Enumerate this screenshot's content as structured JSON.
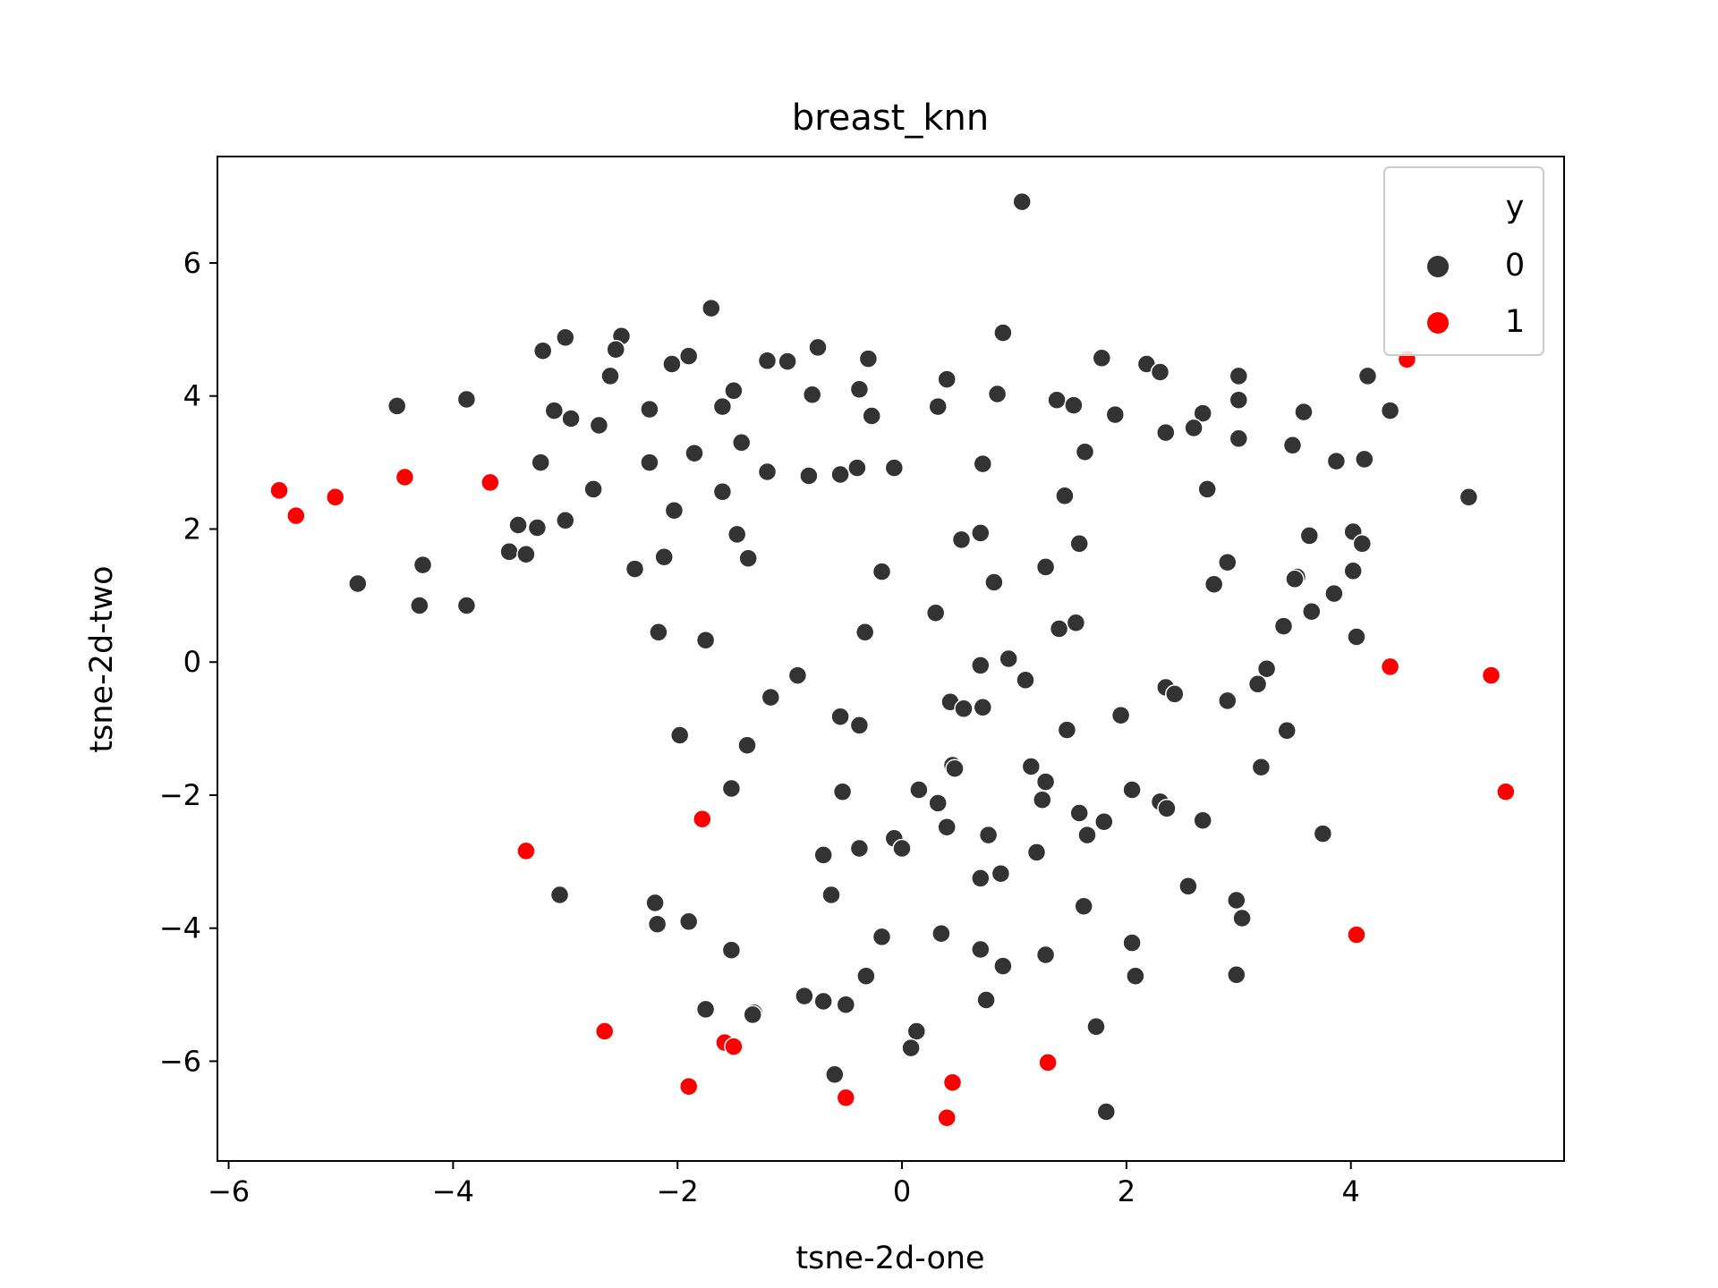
{
  "chart_data": {
    "type": "scatter",
    "title": "breast_knn",
    "xlabel": "tsne-2d-one",
    "ylabel": "tsne-2d-two",
    "xlim": [
      -6.1,
      5.9
    ],
    "ylim": [
      -7.5,
      7.6
    ],
    "x_ticks": [
      -6,
      -4,
      -2,
      0,
      2,
      4
    ],
    "x_tick_labels": [
      "−6",
      "−4",
      "−2",
      "0",
      "2",
      "4"
    ],
    "y_ticks": [
      -6,
      -4,
      -2,
      0,
      2,
      4,
      6
    ],
    "y_tick_labels": [
      "−6",
      "−4",
      "−2",
      "0",
      "2",
      "4",
      "6"
    ],
    "grid": false,
    "legend": {
      "title": "y",
      "placement": "top-right"
    },
    "series": [
      {
        "name": "0",
        "color": "#333333",
        "points": [
          [
            1.07,
            6.92
          ],
          [
            -1.7,
            5.32
          ],
          [
            0.9,
            4.95
          ],
          [
            -2.5,
            4.9
          ],
          [
            -3.0,
            4.88
          ],
          [
            -2.55,
            4.7
          ],
          [
            -3.2,
            4.68
          ],
          [
            -1.9,
            4.6
          ],
          [
            -2.05,
            4.48
          ],
          [
            -1.2,
            4.53
          ],
          [
            -1.02,
            4.52
          ],
          [
            -0.75,
            4.73
          ],
          [
            -0.3,
            4.56
          ],
          [
            1.78,
            4.57
          ],
          [
            2.18,
            4.48
          ],
          [
            2.3,
            4.36
          ],
          [
            3.0,
            4.3
          ],
          [
            4.15,
            4.3
          ],
          [
            0.4,
            4.25
          ],
          [
            -2.6,
            4.3
          ],
          [
            -1.5,
            4.08
          ],
          [
            -0.38,
            4.1
          ],
          [
            -4.5,
            3.85
          ],
          [
            -3.88,
            3.95
          ],
          [
            -0.8,
            4.02
          ],
          [
            0.85,
            4.03
          ],
          [
            1.38,
            3.94
          ],
          [
            1.53,
            3.86
          ],
          [
            3.0,
            3.94
          ],
          [
            -3.1,
            3.78
          ],
          [
            -2.95,
            3.66
          ],
          [
            -2.25,
            3.8
          ],
          [
            -1.6,
            3.84
          ],
          [
            -2.7,
            3.56
          ],
          [
            0.32,
            3.84
          ],
          [
            -0.27,
            3.7
          ],
          [
            1.9,
            3.72
          ],
          [
            2.68,
            3.74
          ],
          [
            3.58,
            3.76
          ],
          [
            4.35,
            3.78
          ],
          [
            2.35,
            3.45
          ],
          [
            2.6,
            3.52
          ],
          [
            3.0,
            3.36
          ],
          [
            3.48,
            3.26
          ],
          [
            -1.43,
            3.3
          ],
          [
            -1.85,
            3.14
          ],
          [
            1.63,
            3.16
          ],
          [
            -3.22,
            3.0
          ],
          [
            -2.25,
            3.0
          ],
          [
            -0.4,
            2.92
          ],
          [
            -0.07,
            2.92
          ],
          [
            0.72,
            2.98
          ],
          [
            3.87,
            3.02
          ],
          [
            4.12,
            3.05
          ],
          [
            -1.2,
            2.86
          ],
          [
            -0.83,
            2.8
          ],
          [
            -0.55,
            2.82
          ],
          [
            -2.75,
            2.6
          ],
          [
            -1.6,
            2.56
          ],
          [
            1.45,
            2.5
          ],
          [
            2.72,
            2.6
          ],
          [
            5.05,
            2.48
          ],
          [
            -2.03,
            2.28
          ],
          [
            -3.42,
            2.06
          ],
          [
            -3.25,
            2.02
          ],
          [
            -3.0,
            2.13
          ],
          [
            -1.47,
            1.92
          ],
          [
            0.7,
            1.94
          ],
          [
            4.02,
            1.96
          ],
          [
            -3.5,
            1.66
          ],
          [
            -3.35,
            1.62
          ],
          [
            -1.37,
            1.56
          ],
          [
            -2.12,
            1.58
          ],
          [
            0.53,
            1.84
          ],
          [
            1.58,
            1.78
          ],
          [
            3.63,
            1.9
          ],
          [
            4.1,
            1.78
          ],
          [
            -4.85,
            1.18
          ],
          [
            -4.27,
            1.46
          ],
          [
            -2.38,
            1.4
          ],
          [
            -0.18,
            1.36
          ],
          [
            0.82,
            1.2
          ],
          [
            1.28,
            1.43
          ],
          [
            2.9,
            1.5
          ],
          [
            2.78,
            1.17
          ],
          [
            3.52,
            1.28
          ],
          [
            3.5,
            1.25
          ],
          [
            4.02,
            1.37
          ],
          [
            -4.3,
            0.85
          ],
          [
            -3.88,
            0.85
          ],
          [
            0.3,
            0.74
          ],
          [
            3.85,
            1.03
          ],
          [
            3.65,
            0.76
          ],
          [
            -2.17,
            0.45
          ],
          [
            -1.75,
            0.33
          ],
          [
            -0.33,
            0.45
          ],
          [
            1.4,
            0.5
          ],
          [
            1.55,
            0.59
          ],
          [
            3.4,
            0.54
          ],
          [
            4.05,
            0.38
          ],
          [
            0.95,
            0.05
          ],
          [
            0.7,
            -0.05
          ],
          [
            3.25,
            -0.1
          ],
          [
            -0.93,
            -0.2
          ],
          [
            1.1,
            -0.27
          ],
          [
            3.17,
            -0.33
          ],
          [
            -1.17,
            -0.53
          ],
          [
            0.43,
            -0.6
          ],
          [
            0.55,
            -0.7
          ],
          [
            0.72,
            -0.68
          ],
          [
            2.35,
            -0.38
          ],
          [
            2.43,
            -0.48
          ],
          [
            2.9,
            -0.58
          ],
          [
            -0.55,
            -0.82
          ],
          [
            1.95,
            -0.8
          ],
          [
            -0.38,
            -0.95
          ],
          [
            -1.98,
            -1.1
          ],
          [
            -1.38,
            -1.25
          ],
          [
            1.47,
            -1.02
          ],
          [
            3.43,
            -1.03
          ],
          [
            0.45,
            -1.55
          ],
          [
            0.47,
            -1.6
          ],
          [
            1.15,
            -1.57
          ],
          [
            3.2,
            -1.58
          ],
          [
            -1.52,
            -1.9
          ],
          [
            -0.53,
            -1.95
          ],
          [
            0.15,
            -1.92
          ],
          [
            1.28,
            -1.8
          ],
          [
            2.05,
            -1.92
          ],
          [
            0.32,
            -2.12
          ],
          [
            1.25,
            -2.07
          ],
          [
            2.3,
            -2.1
          ],
          [
            2.36,
            -2.2
          ],
          [
            1.58,
            -2.27
          ],
          [
            1.8,
            -2.4
          ],
          [
            0.4,
            -2.48
          ],
          [
            2.68,
            -2.38
          ],
          [
            0.77,
            -2.6
          ],
          [
            1.65,
            -2.6
          ],
          [
            3.75,
            -2.58
          ],
          [
            -0.07,
            -2.65
          ],
          [
            0.0,
            -2.8
          ],
          [
            -0.38,
            -2.8
          ],
          [
            -0.7,
            -2.9
          ],
          [
            1.2,
            -2.86
          ],
          [
            0.7,
            -3.25
          ],
          [
            0.88,
            -3.18
          ],
          [
            2.55,
            -3.37
          ],
          [
            -3.05,
            -3.5
          ],
          [
            -2.2,
            -3.62
          ],
          [
            -0.63,
            -3.5
          ],
          [
            2.98,
            -3.58
          ],
          [
            -2.18,
            -3.94
          ],
          [
            -1.9,
            -3.9
          ],
          [
            1.62,
            -3.67
          ],
          [
            3.03,
            -3.85
          ],
          [
            0.35,
            -4.08
          ],
          [
            -0.18,
            -4.13
          ],
          [
            2.05,
            -4.22
          ],
          [
            -1.52,
            -4.33
          ],
          [
            0.7,
            -4.32
          ],
          [
            1.28,
            -4.4
          ],
          [
            0.9,
            -4.57
          ],
          [
            -0.32,
            -4.72
          ],
          [
            2.08,
            -4.72
          ],
          [
            2.98,
            -4.7
          ],
          [
            -0.87,
            -5.02
          ],
          [
            -0.7,
            -5.1
          ],
          [
            -0.5,
            -5.15
          ],
          [
            -1.75,
            -5.22
          ],
          [
            0.75,
            -5.08
          ],
          [
            -1.32,
            -5.27
          ],
          [
            -1.33,
            -5.3
          ],
          [
            1.73,
            -5.48
          ],
          [
            0.13,
            -5.55
          ],
          [
            0.08,
            -5.8
          ],
          [
            -0.6,
            -6.2
          ],
          [
            1.82,
            -6.76
          ]
        ]
      },
      {
        "name": "1",
        "color": "#ff0000",
        "points": [
          [
            4.5,
            4.55
          ],
          [
            -5.55,
            2.58
          ],
          [
            -5.4,
            2.2
          ],
          [
            -5.05,
            2.48
          ],
          [
            -4.43,
            2.78
          ],
          [
            -3.67,
            2.7
          ],
          [
            4.35,
            -0.07
          ],
          [
            5.25,
            -0.2
          ],
          [
            5.38,
            -1.95
          ],
          [
            -1.78,
            -2.36
          ],
          [
            -3.35,
            -2.84
          ],
          [
            4.05,
            -4.1
          ],
          [
            -2.65,
            -5.55
          ],
          [
            -1.58,
            -5.72
          ],
          [
            -1.5,
            -5.78
          ],
          [
            1.3,
            -6.02
          ],
          [
            -1.9,
            -6.38
          ],
          [
            0.45,
            -6.32
          ],
          [
            -0.5,
            -6.55
          ],
          [
            0.4,
            -6.85
          ]
        ]
      }
    ]
  }
}
